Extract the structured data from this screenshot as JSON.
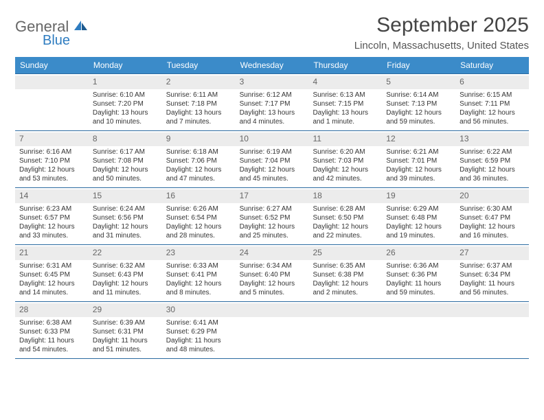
{
  "brand": {
    "general": "General",
    "blue": "Blue"
  },
  "header": {
    "month_title": "September 2025",
    "location": "Lincoln, Massachusetts, United States"
  },
  "colors": {
    "header_bg": "#3b8bc9",
    "header_text": "#ffffff",
    "rule": "#2a6aa0",
    "daynum_bg": "#ececec",
    "text": "#333333"
  },
  "day_names": [
    "Sunday",
    "Monday",
    "Tuesday",
    "Wednesday",
    "Thursday",
    "Friday",
    "Saturday"
  ],
  "weeks": [
    [
      null,
      {
        "n": "1",
        "sr": "Sunrise: 6:10 AM",
        "ss": "Sunset: 7:20 PM",
        "d1": "Daylight: 13 hours",
        "d2": "and 10 minutes."
      },
      {
        "n": "2",
        "sr": "Sunrise: 6:11 AM",
        "ss": "Sunset: 7:18 PM",
        "d1": "Daylight: 13 hours",
        "d2": "and 7 minutes."
      },
      {
        "n": "3",
        "sr": "Sunrise: 6:12 AM",
        "ss": "Sunset: 7:17 PM",
        "d1": "Daylight: 13 hours",
        "d2": "and 4 minutes."
      },
      {
        "n": "4",
        "sr": "Sunrise: 6:13 AM",
        "ss": "Sunset: 7:15 PM",
        "d1": "Daylight: 13 hours",
        "d2": "and 1 minute."
      },
      {
        "n": "5",
        "sr": "Sunrise: 6:14 AM",
        "ss": "Sunset: 7:13 PM",
        "d1": "Daylight: 12 hours",
        "d2": "and 59 minutes."
      },
      {
        "n": "6",
        "sr": "Sunrise: 6:15 AM",
        "ss": "Sunset: 7:11 PM",
        "d1": "Daylight: 12 hours",
        "d2": "and 56 minutes."
      }
    ],
    [
      {
        "n": "7",
        "sr": "Sunrise: 6:16 AM",
        "ss": "Sunset: 7:10 PM",
        "d1": "Daylight: 12 hours",
        "d2": "and 53 minutes."
      },
      {
        "n": "8",
        "sr": "Sunrise: 6:17 AM",
        "ss": "Sunset: 7:08 PM",
        "d1": "Daylight: 12 hours",
        "d2": "and 50 minutes."
      },
      {
        "n": "9",
        "sr": "Sunrise: 6:18 AM",
        "ss": "Sunset: 7:06 PM",
        "d1": "Daylight: 12 hours",
        "d2": "and 47 minutes."
      },
      {
        "n": "10",
        "sr": "Sunrise: 6:19 AM",
        "ss": "Sunset: 7:04 PM",
        "d1": "Daylight: 12 hours",
        "d2": "and 45 minutes."
      },
      {
        "n": "11",
        "sr": "Sunrise: 6:20 AM",
        "ss": "Sunset: 7:03 PM",
        "d1": "Daylight: 12 hours",
        "d2": "and 42 minutes."
      },
      {
        "n": "12",
        "sr": "Sunrise: 6:21 AM",
        "ss": "Sunset: 7:01 PM",
        "d1": "Daylight: 12 hours",
        "d2": "and 39 minutes."
      },
      {
        "n": "13",
        "sr": "Sunrise: 6:22 AM",
        "ss": "Sunset: 6:59 PM",
        "d1": "Daylight: 12 hours",
        "d2": "and 36 minutes."
      }
    ],
    [
      {
        "n": "14",
        "sr": "Sunrise: 6:23 AM",
        "ss": "Sunset: 6:57 PM",
        "d1": "Daylight: 12 hours",
        "d2": "and 33 minutes."
      },
      {
        "n": "15",
        "sr": "Sunrise: 6:24 AM",
        "ss": "Sunset: 6:56 PM",
        "d1": "Daylight: 12 hours",
        "d2": "and 31 minutes."
      },
      {
        "n": "16",
        "sr": "Sunrise: 6:26 AM",
        "ss": "Sunset: 6:54 PM",
        "d1": "Daylight: 12 hours",
        "d2": "and 28 minutes."
      },
      {
        "n": "17",
        "sr": "Sunrise: 6:27 AM",
        "ss": "Sunset: 6:52 PM",
        "d1": "Daylight: 12 hours",
        "d2": "and 25 minutes."
      },
      {
        "n": "18",
        "sr": "Sunrise: 6:28 AM",
        "ss": "Sunset: 6:50 PM",
        "d1": "Daylight: 12 hours",
        "d2": "and 22 minutes."
      },
      {
        "n": "19",
        "sr": "Sunrise: 6:29 AM",
        "ss": "Sunset: 6:48 PM",
        "d1": "Daylight: 12 hours",
        "d2": "and 19 minutes."
      },
      {
        "n": "20",
        "sr": "Sunrise: 6:30 AM",
        "ss": "Sunset: 6:47 PM",
        "d1": "Daylight: 12 hours",
        "d2": "and 16 minutes."
      }
    ],
    [
      {
        "n": "21",
        "sr": "Sunrise: 6:31 AM",
        "ss": "Sunset: 6:45 PM",
        "d1": "Daylight: 12 hours",
        "d2": "and 14 minutes."
      },
      {
        "n": "22",
        "sr": "Sunrise: 6:32 AM",
        "ss": "Sunset: 6:43 PM",
        "d1": "Daylight: 12 hours",
        "d2": "and 11 minutes."
      },
      {
        "n": "23",
        "sr": "Sunrise: 6:33 AM",
        "ss": "Sunset: 6:41 PM",
        "d1": "Daylight: 12 hours",
        "d2": "and 8 minutes."
      },
      {
        "n": "24",
        "sr": "Sunrise: 6:34 AM",
        "ss": "Sunset: 6:40 PM",
        "d1": "Daylight: 12 hours",
        "d2": "and 5 minutes."
      },
      {
        "n": "25",
        "sr": "Sunrise: 6:35 AM",
        "ss": "Sunset: 6:38 PM",
        "d1": "Daylight: 12 hours",
        "d2": "and 2 minutes."
      },
      {
        "n": "26",
        "sr": "Sunrise: 6:36 AM",
        "ss": "Sunset: 6:36 PM",
        "d1": "Daylight: 11 hours",
        "d2": "and 59 minutes."
      },
      {
        "n": "27",
        "sr": "Sunrise: 6:37 AM",
        "ss": "Sunset: 6:34 PM",
        "d1": "Daylight: 11 hours",
        "d2": "and 56 minutes."
      }
    ],
    [
      {
        "n": "28",
        "sr": "Sunrise: 6:38 AM",
        "ss": "Sunset: 6:33 PM",
        "d1": "Daylight: 11 hours",
        "d2": "and 54 minutes."
      },
      {
        "n": "29",
        "sr": "Sunrise: 6:39 AM",
        "ss": "Sunset: 6:31 PM",
        "d1": "Daylight: 11 hours",
        "d2": "and 51 minutes."
      },
      {
        "n": "30",
        "sr": "Sunrise: 6:41 AM",
        "ss": "Sunset: 6:29 PM",
        "d1": "Daylight: 11 hours",
        "d2": "and 48 minutes."
      },
      null,
      null,
      null,
      null
    ]
  ]
}
